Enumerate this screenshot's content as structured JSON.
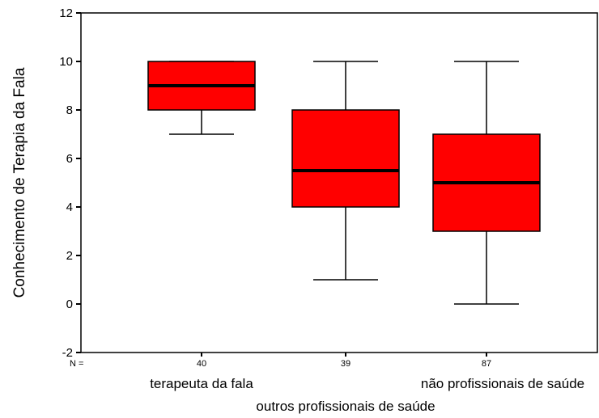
{
  "chart_data": {
    "type": "boxplot",
    "ylabel": "Conhecimento de Terapia da Fala",
    "xlabel": "outros profissionais de saúde",
    "ylim": [
      -2,
      12
    ],
    "yticks": [
      -2,
      0,
      2,
      4,
      6,
      8,
      10,
      12
    ],
    "n_prefix": "N =",
    "box_color": "#ff0000",
    "grid": false,
    "groups": [
      {
        "category": "terapeuta da fala",
        "n": "40",
        "whisker_low": 7,
        "q1": 8,
        "median": 9,
        "q3": 10,
        "whisker_high": 10
      },
      {
        "category": "",
        "n": "39",
        "whisker_low": 1,
        "q1": 4,
        "median": 5.5,
        "q3": 8,
        "whisker_high": 10
      },
      {
        "category": "não profissionais de saúde",
        "n": "87",
        "whisker_low": 0,
        "q1": 3,
        "median": 5,
        "q3": 7,
        "whisker_high": 10
      }
    ]
  }
}
